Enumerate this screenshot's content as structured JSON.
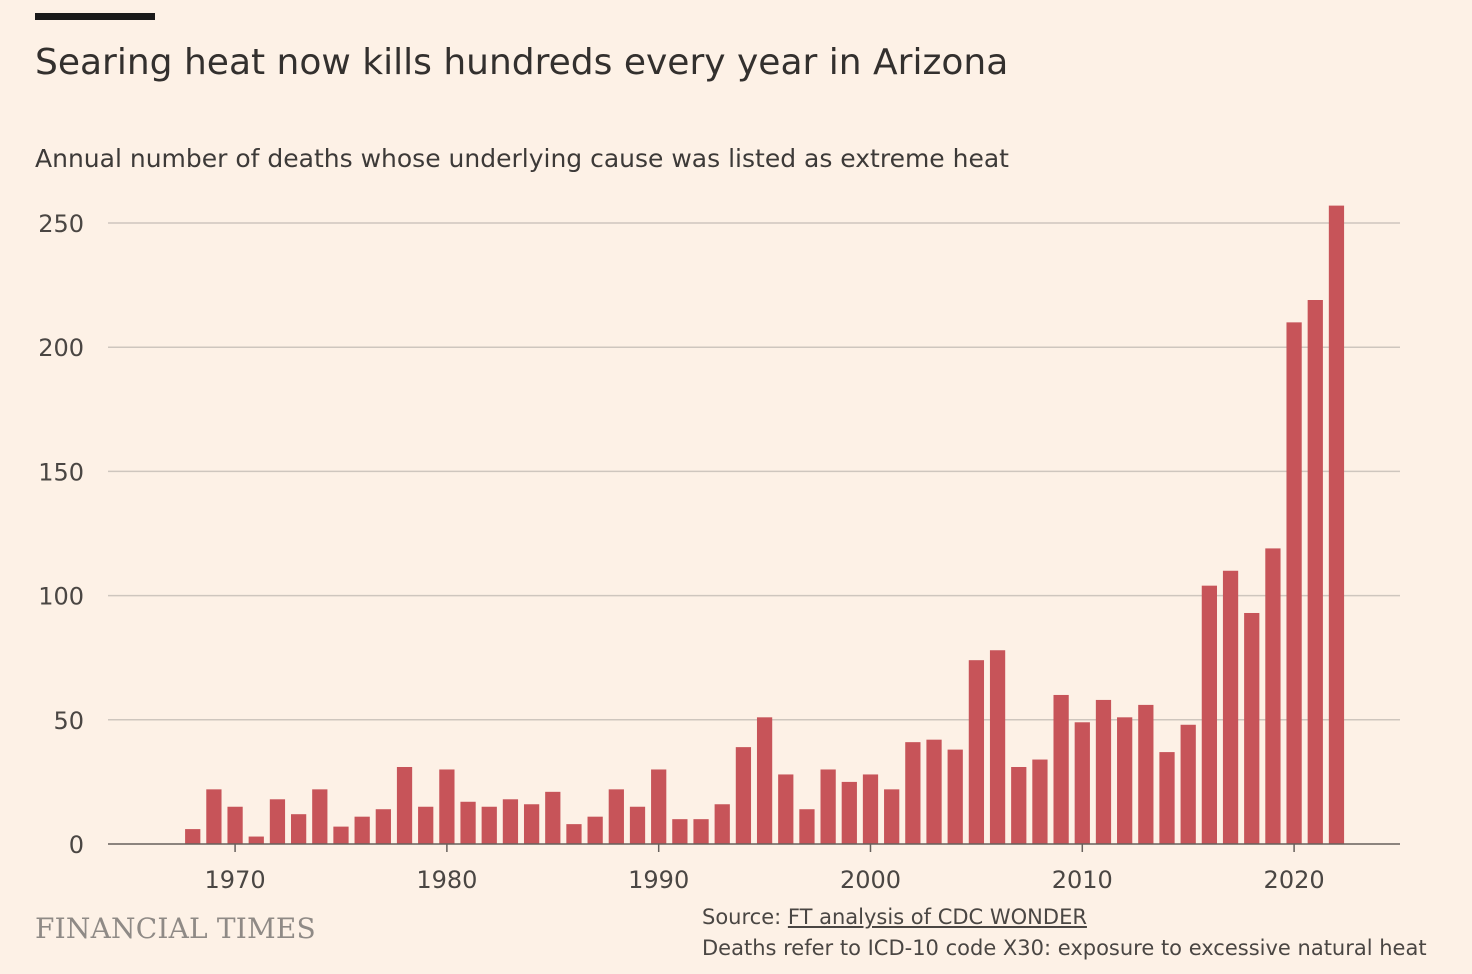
{
  "header": {
    "title": "Searing heat now kills hundreds every year in Arizona",
    "subtitle": "Annual number of deaths whose underlying cause was listed as extreme heat"
  },
  "footer": {
    "brand": "FINANCIAL TIMES",
    "source_prefix": "Source: ",
    "source_link": "FT analysis of CDC WONDER",
    "note": "Deaths refer to ICD-10 code X30: exposure to excessive natural heat"
  },
  "colors": {
    "background": "#FDF1E6",
    "bar": "#C75459",
    "grid": "#CEC6BE",
    "axis": "#66605C",
    "text": "#4a4643"
  },
  "chart_data": {
    "type": "bar",
    "x": [
      1968,
      1969,
      1970,
      1971,
      1972,
      1973,
      1974,
      1975,
      1976,
      1977,
      1978,
      1979,
      1980,
      1981,
      1982,
      1983,
      1984,
      1985,
      1986,
      1987,
      1988,
      1989,
      1990,
      1991,
      1992,
      1993,
      1994,
      1995,
      1996,
      1997,
      1998,
      1999,
      2000,
      2001,
      2002,
      2003,
      2004,
      2005,
      2006,
      2007,
      2008,
      2009,
      2010,
      2011,
      2012,
      2013,
      2014,
      2015,
      2016,
      2017,
      2018,
      2019,
      2020,
      2021,
      2022
    ],
    "values": [
      6,
      22,
      15,
      3,
      18,
      12,
      22,
      7,
      11,
      14,
      31,
      15,
      30,
      17,
      15,
      18,
      16,
      21,
      8,
      11,
      22,
      15,
      30,
      10,
      10,
      16,
      39,
      51,
      28,
      14,
      30,
      25,
      28,
      22,
      41,
      42,
      38,
      74,
      78,
      31,
      34,
      60,
      49,
      58,
      51,
      56,
      37,
      48,
      104,
      110,
      93,
      119,
      210,
      219,
      257
    ],
    "xlim": [
      1964,
      2025
    ],
    "ylim": [
      0,
      250
    ],
    "xticks": [
      1970,
      1980,
      1990,
      2000,
      2010,
      2020
    ],
    "yticks": [
      0,
      50,
      100,
      150,
      200,
      250
    ],
    "grid": "horizontal"
  }
}
